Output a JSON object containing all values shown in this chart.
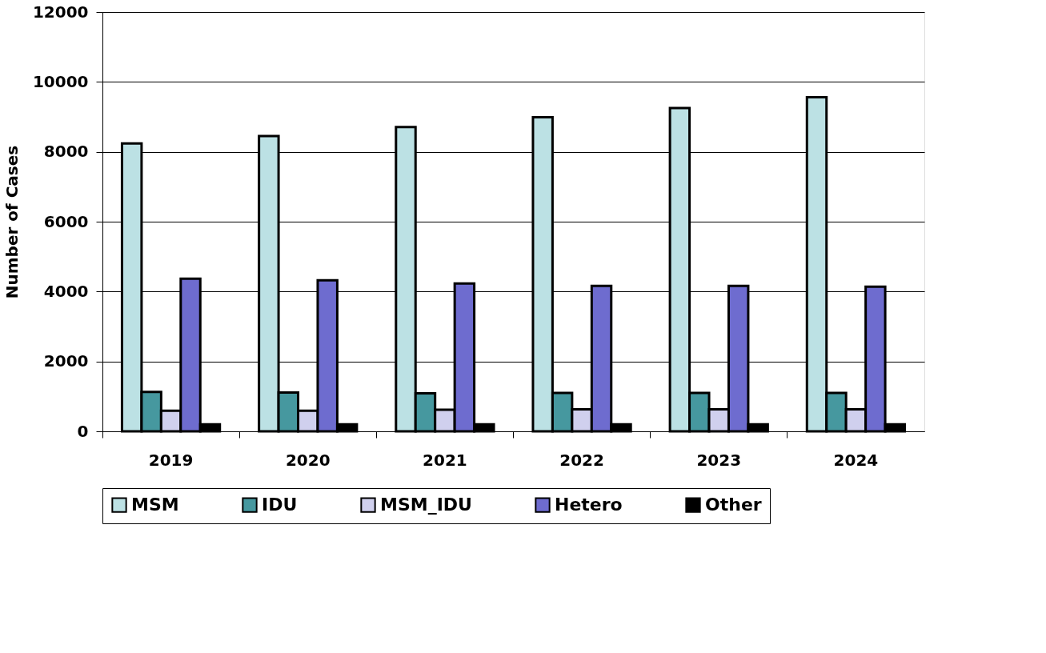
{
  "chart_data": {
    "type": "bar",
    "ylabel": "Number of Cases",
    "categories": [
      "2019",
      "2020",
      "2021",
      "2022",
      "2023",
      "2024"
    ],
    "series": [
      {
        "name": "MSM",
        "color": "#bce1e4",
        "values": [
          8240,
          8450,
          8710,
          8990,
          9250,
          9560
        ]
      },
      {
        "name": "IDU",
        "color": "#46989f",
        "values": [
          1130,
          1110,
          1090,
          1100,
          1100,
          1100
        ]
      },
      {
        "name": "MSM_IDU",
        "color": "#d0d0ee",
        "values": [
          590,
          590,
          620,
          630,
          630,
          630
        ]
      },
      {
        "name": "Hetero",
        "color": "#6e6ccf",
        "values": [
          4370,
          4320,
          4230,
          4160,
          4160,
          4140
        ]
      },
      {
        "name": "Other",
        "color": "#000000",
        "values": [
          200,
          200,
          200,
          200,
          200,
          200
        ]
      }
    ],
    "ylim": [
      0,
      12000
    ],
    "yticks": [
      0,
      2000,
      4000,
      6000,
      8000,
      10000,
      12000
    ],
    "grid": "y",
    "legend": "bottom"
  }
}
